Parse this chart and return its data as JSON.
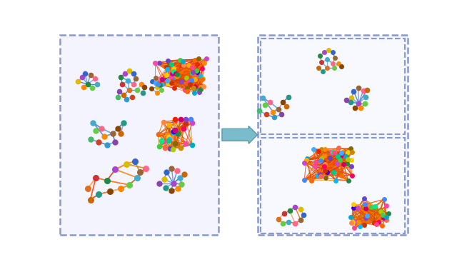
{
  "box_edge_color": "#8899cc",
  "arrow_color": "#7bbccc",
  "arrow_edge_color": "#5599aa",
  "sparse_colors": [
    "#e07020",
    "#cc3333",
    "#228844",
    "#aa44cc",
    "#ddbb00",
    "#3366cc",
    "#996633",
    "#ff6688",
    "#44aacc",
    "#66cc44",
    "#ff8800",
    "#884400",
    "#229988",
    "#cc6600",
    "#8844aa",
    "#3399cc",
    "#cc4422",
    "#44bb66",
    "#ff9900",
    "#6622cc"
  ],
  "dense_colors": [
    "#ff4488",
    "#ff8800",
    "#44cc44",
    "#4488ff",
    "#cc44cc",
    "#ffcc00",
    "#00aacc",
    "#ff6600",
    "#228844",
    "#cc3300",
    "#8844cc",
    "#ff8844",
    "#44aaff",
    "#886600",
    "#00cc88",
    "#ff0066",
    "#6644cc",
    "#cc8800",
    "#ff44aa",
    "#00bbff",
    "#aacc00",
    "#ff6644",
    "#4400cc",
    "#cc0088",
    "#ee2200",
    "#00ee88",
    "#cc0066",
    "#ffaa00"
  ],
  "ec_warm": [
    "#ff9944",
    "#dd6600",
    "#cc4400",
    "#ff6600",
    "#ee8800",
    "#cc8800",
    "#ff4400",
    "#dd4400",
    "#bb5500",
    "#ee7700"
  ],
  "ec_blue": [
    "#5599cc",
    "#3377bb",
    "#6688dd",
    "#4488cc",
    "#7799dd",
    "#3366bb",
    "#4499cc",
    "#2288bb"
  ],
  "ec_orange_dark": [
    "#cc5500",
    "#aa3300",
    "#dd6600",
    "#bb4400",
    "#ee7700",
    "#993300",
    "#cc4400",
    "#dd5500"
  ],
  "ec_multi": [
    "#ff8800",
    "#cc4400",
    "#ee6600",
    "#ff4488",
    "#8844cc",
    "#44cc88",
    "#cc8800",
    "#4488ff",
    "#ff6600",
    "#884400"
  ]
}
